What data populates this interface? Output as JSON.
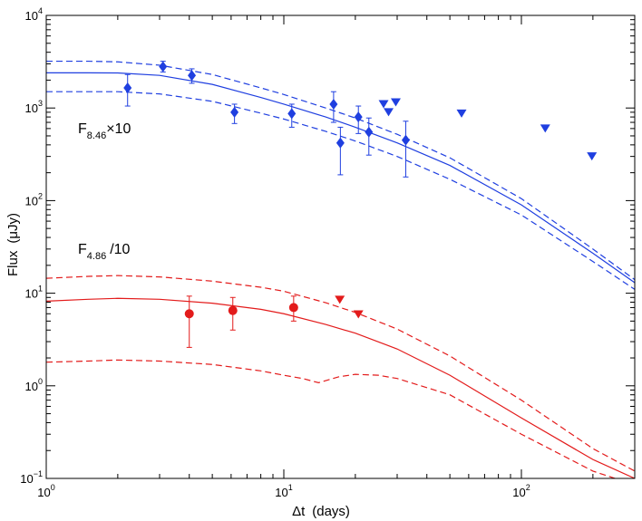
{
  "chart_data": {
    "type": "scatter",
    "scale": {
      "x": "log",
      "y": "log"
    },
    "xlim": [
      1,
      300
    ],
    "ylim": [
      0.1,
      10000
    ],
    "xlabel": {
      "delta": "Δt",
      "rest": "(days)"
    },
    "ylabel": {
      "main": "Flux",
      "unit": "(μJy)"
    },
    "x_ticks": [
      {
        "base": "10",
        "exp": "0"
      },
      {
        "base": "10",
        "exp": "1"
      },
      {
        "base": "10",
        "exp": "2"
      }
    ],
    "y_ticks": [
      {
        "base": "10",
        "exp": "−1"
      },
      {
        "base": "10",
        "exp": "0"
      },
      {
        "base": "10",
        "exp": "1"
      },
      {
        "base": "10",
        "exp": "2"
      },
      {
        "base": "10",
        "exp": "3"
      },
      {
        "base": "10",
        "exp": "4"
      }
    ],
    "annotations": [
      {
        "name": "F8.46",
        "prefix": "F",
        "subscript": "8.46",
        "suffix": "×10",
        "color": "#000000"
      },
      {
        "name": "F4.86",
        "prefix": "F",
        "subscript": "4.86",
        "suffix": "/10",
        "color": "#000000"
      }
    ],
    "series": [
      {
        "name": "8.46 GHz detections (×10)",
        "color": "#1f3fe0",
        "marker": "diamond",
        "points": [
          {
            "x": 2.2,
            "y": 1650,
            "ylo": 1050,
            "yhi": 2300
          },
          {
            "x": 3.1,
            "y": 2800,
            "ylo": 2450,
            "yhi": 3200
          },
          {
            "x": 4.1,
            "y": 2250,
            "ylo": 1850,
            "yhi": 2650
          },
          {
            "x": 6.2,
            "y": 900,
            "ylo": 680,
            "yhi": 1100
          },
          {
            "x": 10.8,
            "y": 870,
            "ylo": 620,
            "yhi": 1100
          },
          {
            "x": 16.2,
            "y": 1100,
            "ylo": 700,
            "yhi": 1500
          },
          {
            "x": 17.3,
            "y": 420,
            "ylo": 190,
            "yhi": 620
          },
          {
            "x": 20.6,
            "y": 800,
            "ylo": 530,
            "yhi": 1050
          },
          {
            "x": 22.8,
            "y": 550,
            "ylo": 310,
            "yhi": 780
          },
          {
            "x": 32.6,
            "y": 450,
            "ylo": 180,
            "yhi": 720
          }
        ]
      },
      {
        "name": "8.46 GHz upper limits (×10)",
        "color": "#1f3fe0",
        "marker": "triangle-down",
        "points": [
          {
            "x": 26.3,
            "y": 1100
          },
          {
            "x": 27.6,
            "y": 900
          },
          {
            "x": 29.6,
            "y": 1150
          },
          {
            "x": 56.0,
            "y": 870
          },
          {
            "x": 126.0,
            "y": 600
          },
          {
            "x": 198.0,
            "y": 300
          }
        ]
      },
      {
        "name": "4.86 GHz detections (/10)",
        "color": "#e31b1b",
        "marker": "circle",
        "points": [
          {
            "x": 4.0,
            "y": 6.0,
            "ylo": 2.6,
            "yhi": 9.3
          },
          {
            "x": 6.1,
            "y": 6.5,
            "ylo": 4.0,
            "yhi": 9.0
          },
          {
            "x": 11.0,
            "y": 7.0,
            "ylo": 5.0,
            "yhi": 9.3
          }
        ]
      },
      {
        "name": "4.86 GHz upper limits (/10)",
        "color": "#e31b1b",
        "marker": "triangle-down",
        "points": [
          {
            "x": 17.2,
            "y": 8.5
          },
          {
            "x": 20.6,
            "y": 5.9
          }
        ]
      }
    ],
    "curves": [
      {
        "name": "8.46 GHz model",
        "color": "#1f3fe0",
        "style": "solid",
        "x": [
          1,
          1.5,
          2,
          3,
          5,
          8,
          10,
          15,
          20,
          30,
          50,
          100,
          200,
          300
        ],
        "y": [
          2400,
          2400,
          2390,
          2250,
          1800,
          1300,
          1100,
          800,
          620,
          420,
          240,
          90,
          27,
          13
        ]
      },
      {
        "name": "8.46 GHz model upper",
        "color": "#1f3fe0",
        "style": "dashed",
        "x": [
          1,
          1.5,
          2,
          3,
          5,
          8,
          10,
          15,
          20,
          30,
          50,
          100,
          200,
          300
        ],
        "y": [
          3200,
          3200,
          3150,
          2900,
          2300,
          1650,
          1400,
          1000,
          780,
          520,
          290,
          105,
          30,
          14
        ]
      },
      {
        "name": "8.46 GHz model lower",
        "color": "#1f3fe0",
        "style": "dashed",
        "x": [
          1,
          1.5,
          2,
          3,
          5,
          8,
          10,
          15,
          20,
          30,
          50,
          100,
          200,
          300
        ],
        "y": [
          1500,
          1500,
          1500,
          1420,
          1180,
          880,
          760,
          560,
          440,
          300,
          170,
          70,
          22,
          11
        ]
      },
      {
        "name": "4.86 GHz model",
        "color": "#e31b1b",
        "style": "solid",
        "x": [
          1,
          1.5,
          2,
          3,
          5,
          8,
          10,
          15,
          20,
          30,
          50,
          100,
          200,
          300
        ],
        "y": [
          8.2,
          8.6,
          8.8,
          8.6,
          7.8,
          6.7,
          6.0,
          4.6,
          3.7,
          2.5,
          1.3,
          0.45,
          0.16,
          0.1
        ]
      },
      {
        "name": "4.86 GHz model upper",
        "color": "#e31b1b",
        "style": "dashed",
        "x": [
          1,
          1.5,
          2,
          3,
          5,
          8,
          10,
          15,
          20,
          30,
          50,
          100,
          200,
          300
        ],
        "y": [
          14.5,
          15.2,
          15.5,
          15.0,
          13.5,
          11.6,
          10.5,
          7.9,
          6.2,
          4.1,
          2.1,
          0.7,
          0.21,
          0.12
        ]
      },
      {
        "name": "4.86 GHz model lower",
        "color": "#e31b1b",
        "style": "dashed",
        "x": [
          1,
          1.5,
          2,
          3,
          5,
          8,
          10,
          12,
          14,
          17,
          20,
          25,
          30,
          50,
          100,
          200,
          300
        ],
        "y": [
          1.8,
          1.85,
          1.9,
          1.85,
          1.7,
          1.45,
          1.3,
          1.2,
          1.08,
          1.25,
          1.33,
          1.3,
          1.2,
          0.8,
          0.3,
          0.12,
          0.085
        ]
      }
    ]
  }
}
